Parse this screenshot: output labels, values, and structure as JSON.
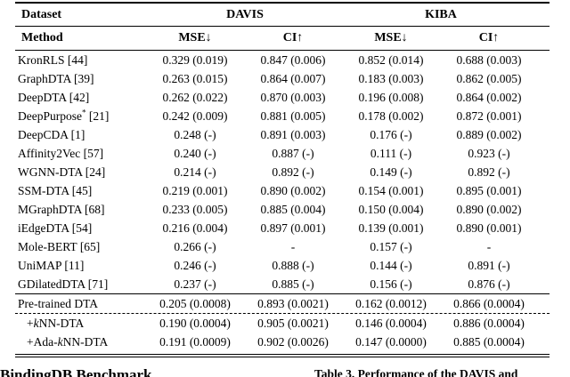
{
  "table": {
    "header": {
      "dataset_label": "Dataset",
      "method_label": "Method",
      "groups": [
        {
          "label": "DAVIS"
        },
        {
          "label": "KIBA"
        }
      ],
      "metrics": [
        "MSE↓",
        "CI↑",
        "MSE↓",
        "CI↑"
      ]
    },
    "rows": [
      {
        "method": [
          {
            "t": "KronRLS [44]"
          }
        ],
        "values": [
          "0.329 (0.019)",
          "0.847 (0.006)",
          "0.852 (0.014)",
          "0.688 (0.003)"
        ]
      },
      {
        "method": [
          {
            "t": "GraphDTA [39]"
          }
        ],
        "values": [
          "0.263 (0.015)",
          "0.864 (0.007)",
          "0.183 (0.003)",
          "0.862 (0.005)"
        ]
      },
      {
        "method": [
          {
            "t": "DeepDTA [42]"
          }
        ],
        "values": [
          "0.262 (0.022)",
          "0.870 (0.003)",
          "0.196 (0.008)",
          "0.864 (0.002)"
        ]
      },
      {
        "method": [
          {
            "t": "DeepPurpose"
          },
          {
            "t": "*",
            "sup": true
          },
          {
            "t": " [21]"
          }
        ],
        "values": [
          "0.242 (0.009)",
          "0.881 (0.005)",
          "0.178 (0.002)",
          "0.872 (0.001)"
        ]
      },
      {
        "method": [
          {
            "t": "DeepCDA [1]"
          }
        ],
        "values": [
          "0.248 (-)",
          "0.891 (0.003)",
          "0.176 (-)",
          "0.889 (0.002)"
        ]
      },
      {
        "method": [
          {
            "t": "Affinity2Vec [57]"
          }
        ],
        "values": [
          "0.240 (-)",
          "0.887 (-)",
          "0.111 (-)",
          "0.923 (-)"
        ]
      },
      {
        "method": [
          {
            "t": "WGNN-DTA [24]"
          }
        ],
        "values": [
          "0.214 (-)",
          "0.892 (-)",
          "0.149 (-)",
          "0.892 (-)"
        ]
      },
      {
        "method": [
          {
            "t": "SSM-DTA [45]"
          }
        ],
        "values": [
          "0.219 (0.001)",
          "0.890 (0.002)",
          "0.154 (0.001)",
          "0.895 (0.001)"
        ]
      },
      {
        "method": [
          {
            "t": "MGraphDTA [68]"
          }
        ],
        "values": [
          "0.233 (0.005)",
          "0.885 (0.004)",
          "0.150 (0.004)",
          "0.890 (0.002)"
        ]
      },
      {
        "method": [
          {
            "t": "iEdgeDTA [54]"
          }
        ],
        "values": [
          "0.216 (0.004)",
          "0.897 (0.001)",
          "0.139 (0.001)",
          "0.890 (0.001)"
        ]
      },
      {
        "method": [
          {
            "t": "Mole-BERT [65]"
          }
        ],
        "values": [
          "0.266 (-)",
          "-",
          "0.157 (-)",
          "-"
        ]
      },
      {
        "method": [
          {
            "t": "UniMAP [11]"
          }
        ],
        "values": [
          "0.246 (-)",
          "0.888 (-)",
          "0.144 (-)",
          "0.891 (-)"
        ]
      },
      {
        "method": [
          {
            "t": "GDilatedDTA [71]"
          }
        ],
        "values": [
          "0.237 (-)",
          "0.885 (-)",
          "0.156 (-)",
          "0.876 (-)"
        ]
      }
    ],
    "bottom_rows": [
      {
        "method": [
          {
            "t": "Pre-trained DTA"
          }
        ],
        "indent": 0,
        "values": [
          "0.205 (0.0008)",
          "0.893 (0.0021)",
          "0.162 (0.0012)",
          "0.866 (0.0004)"
        ]
      },
      {
        "method": [
          {
            "t": "+"
          },
          {
            "t": "k",
            "i": true
          },
          {
            "t": "NN-DTA"
          }
        ],
        "indent": 1,
        "values": [
          "0.190 (0.0004)",
          "0.905 (0.0021)",
          "0.146 (0.0004)",
          "0.886 (0.0004)"
        ]
      },
      {
        "method": [
          {
            "t": "+Ada-"
          },
          {
            "t": "k",
            "i": true
          },
          {
            "t": "NN-DTA"
          }
        ],
        "indent": 1,
        "values": [
          "0.191 (0.0009)",
          "0.902 (0.0026)",
          "0.147 (0.0000)",
          "0.885 (0.0004)"
        ]
      }
    ]
  },
  "captions": {
    "left": "BindingDB Benchmark",
    "right": "Table 3. Performance of the DAVIS and"
  }
}
